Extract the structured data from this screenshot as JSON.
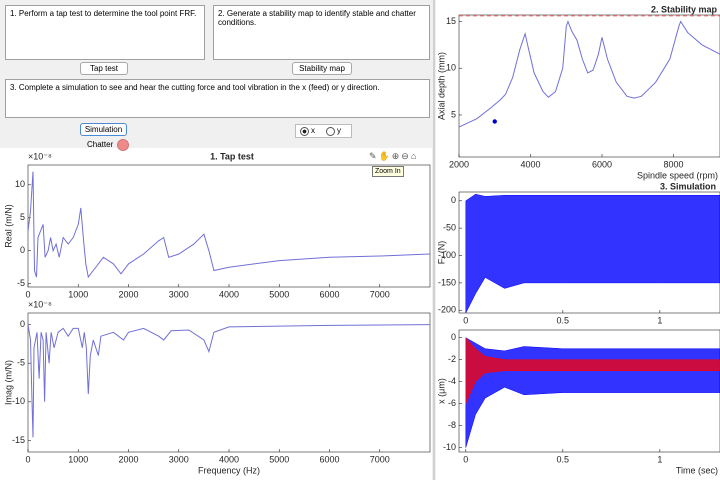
{
  "ui": {
    "text_areas": [
      "1. Perform a tap test to determine the tool point FRF.",
      "2. Generate a stability map to identify stable and chatter conditions.",
      "3. Complete a simulation to see and hear the cutting force and tool vibration in the x (feed) or y direction."
    ],
    "buttons": [
      "Tap test",
      "Stability map",
      "Simulation"
    ],
    "lamp_label": "Chatter",
    "radio": [
      "x",
      "y"
    ],
    "tooltip": "Zoom In"
  },
  "chart_data": [
    {
      "type": "line",
      "title": "1. Tap test",
      "y_exponent": "×10⁻⁸",
      "ylabel": "Real (m/N)",
      "color": "#7070d8",
      "x": [
        0,
        50,
        100,
        130,
        170,
        200,
        300,
        340,
        400,
        450,
        500,
        560,
        620,
        700,
        800,
        900,
        1000,
        1050,
        1100,
        1150,
        1200,
        1300,
        1500,
        1700,
        1850,
        2000,
        2300,
        2600,
        2700,
        2800,
        3000,
        3300,
        3500,
        3600,
        3700,
        4000,
        5000,
        6000,
        7000,
        8000
      ],
      "values": [
        3,
        6,
        12,
        -3,
        -4,
        2,
        4,
        -1,
        0,
        2,
        0,
        1,
        -1,
        2,
        1,
        2,
        4,
        6.5,
        2,
        -2,
        -4,
        -3,
        -1,
        -2,
        -3.5,
        -2,
        -0.5,
        1.5,
        2,
        -1,
        -0.5,
        1,
        2.5,
        0,
        -3,
        -2.5,
        -1.5,
        -1,
        -0.8,
        -0.5
      ],
      "xlim": [
        0,
        8000
      ],
      "xticks": [
        0,
        1000,
        2000,
        3000,
        4000,
        5000,
        6000,
        7000
      ],
      "ylim": [
        -5.5,
        13
      ],
      "yticks": [
        -5,
        0,
        5,
        10
      ]
    },
    {
      "type": "line",
      "y_exponent": "×10⁻⁸",
      "ylabel": "Imag (m/N)",
      "xlabel": "Frequency (Hz)",
      "color": "#7070d8",
      "x": [
        0,
        50,
        80,
        100,
        120,
        180,
        220,
        260,
        300,
        330,
        360,
        420,
        460,
        520,
        600,
        700,
        800,
        900,
        1000,
        1080,
        1120,
        1160,
        1200,
        1240,
        1300,
        1400,
        1450,
        1700,
        1900,
        2000,
        2300,
        2600,
        2700,
        2850,
        3200,
        3500,
        3600,
        3700,
        4000,
        5000,
        6000,
        8000
      ],
      "values": [
        0,
        -2,
        -10,
        -14.6,
        -3,
        -1,
        -7,
        -1,
        -2,
        -10,
        -1,
        -5,
        -1,
        -3,
        -1,
        -0.5,
        -1.5,
        -0.5,
        -0.5,
        -3,
        -1,
        -3,
        -9,
        -4,
        -2,
        -4,
        -1.5,
        -1,
        -2,
        -1,
        -0.5,
        -1.5,
        -2,
        -0.8,
        -0.7,
        -2,
        -3.5,
        -1,
        -0.3,
        -0.2,
        -0.1,
        0
      ],
      "xlim": [
        0,
        8000
      ],
      "xticks": [
        0,
        1000,
        2000,
        3000,
        4000,
        5000,
        6000,
        7000
      ],
      "ylim": [
        -16.5,
        1.5
      ],
      "yticks": [
        -15,
        -10,
        -5,
        0
      ]
    },
    {
      "type": "line",
      "title": "2. Stability map",
      "xlabel": "Spindle speed (rpm)",
      "ylabel": "Axial depth (mm)",
      "color": "#7070d8",
      "x": [
        2000,
        2500,
        2900,
        3150,
        3300,
        3500,
        3700,
        3850,
        3950,
        4100,
        4350,
        4500,
        4700,
        4900,
        5000,
        5050,
        5150,
        5300,
        5450,
        5600,
        5750,
        5900,
        6000,
        6150,
        6400,
        6700,
        6900,
        7100,
        7500,
        7900,
        8150,
        8200,
        8400,
        8800,
        9300
      ],
      "values": [
        3.7,
        4.6,
        5.8,
        6.6,
        7.2,
        9,
        12,
        13.7,
        12,
        9.5,
        7.5,
        6.9,
        7.5,
        10,
        14.5,
        15,
        14,
        13,
        11,
        9.5,
        9.8,
        11.5,
        13.3,
        11,
        8.5,
        7,
        6.8,
        7,
        8.5,
        11,
        14.5,
        15,
        13.8,
        12.5,
        11.5
      ],
      "limit_line": {
        "value": 15.6,
        "color": "#ff6666"
      },
      "point": {
        "x": 3000,
        "y": 4.3,
        "color": "#0000cc"
      },
      "xlim": [
        2000,
        9300
      ],
      "xticks": [
        2000,
        4000,
        6000,
        8000
      ],
      "ylim": [
        0.5,
        15.7
      ],
      "yticks": [
        5,
        10,
        15
      ]
    },
    {
      "type": "band",
      "title": "3. Simulation",
      "ylabel": "Fₓ (N)",
      "bands": [
        {
          "color": "#0000ff",
          "x": [
            0,
            0.05,
            0.1,
            0.2,
            0.3,
            0.5,
            1,
            1.31
          ],
          "upper": [
            0,
            12,
            8,
            10,
            10,
            10,
            10,
            10
          ],
          "lower": [
            -205,
            -170,
            -140,
            -160,
            -150,
            -150,
            -150,
            -150
          ]
        }
      ],
      "xlim": [
        -0.035,
        1.31
      ],
      "xticks": [
        0,
        0.5,
        1
      ],
      "ylim": [
        -205,
        16
      ],
      "yticks": [
        -200,
        -150,
        -100,
        -50,
        0
      ]
    },
    {
      "type": "band",
      "ylabel": "x (μm)",
      "xlabel": "Time (sec)",
      "bands": [
        {
          "color": "#0000ff",
          "x": [
            0,
            0.05,
            0.1,
            0.2,
            0.3,
            0.5,
            1,
            1.31
          ],
          "upper": [
            0,
            -0.5,
            -1,
            -1.2,
            -0.8,
            -1,
            -1,
            -1
          ],
          "lower": [
            -10,
            -7,
            -5.5,
            -4.5,
            -5.2,
            -5,
            -5,
            -5
          ]
        },
        {
          "color": "#ff0000",
          "x": [
            0,
            0.05,
            0.1,
            0.2,
            0.3,
            0.5,
            1,
            1.31
          ],
          "upper": [
            0,
            -1,
            -1.7,
            -2,
            -2,
            -2,
            -2,
            -2
          ],
          "lower": [
            -6,
            -4,
            -3.2,
            -3,
            -3,
            -3,
            -3,
            -3
          ]
        }
      ],
      "xlim": [
        -0.035,
        1.31
      ],
      "xticks": [
        0,
        0.5,
        1
      ],
      "ylim": [
        -10.4,
        0.7
      ],
      "yticks": [
        -10,
        -8,
        -6,
        -4,
        -2,
        0
      ]
    }
  ]
}
